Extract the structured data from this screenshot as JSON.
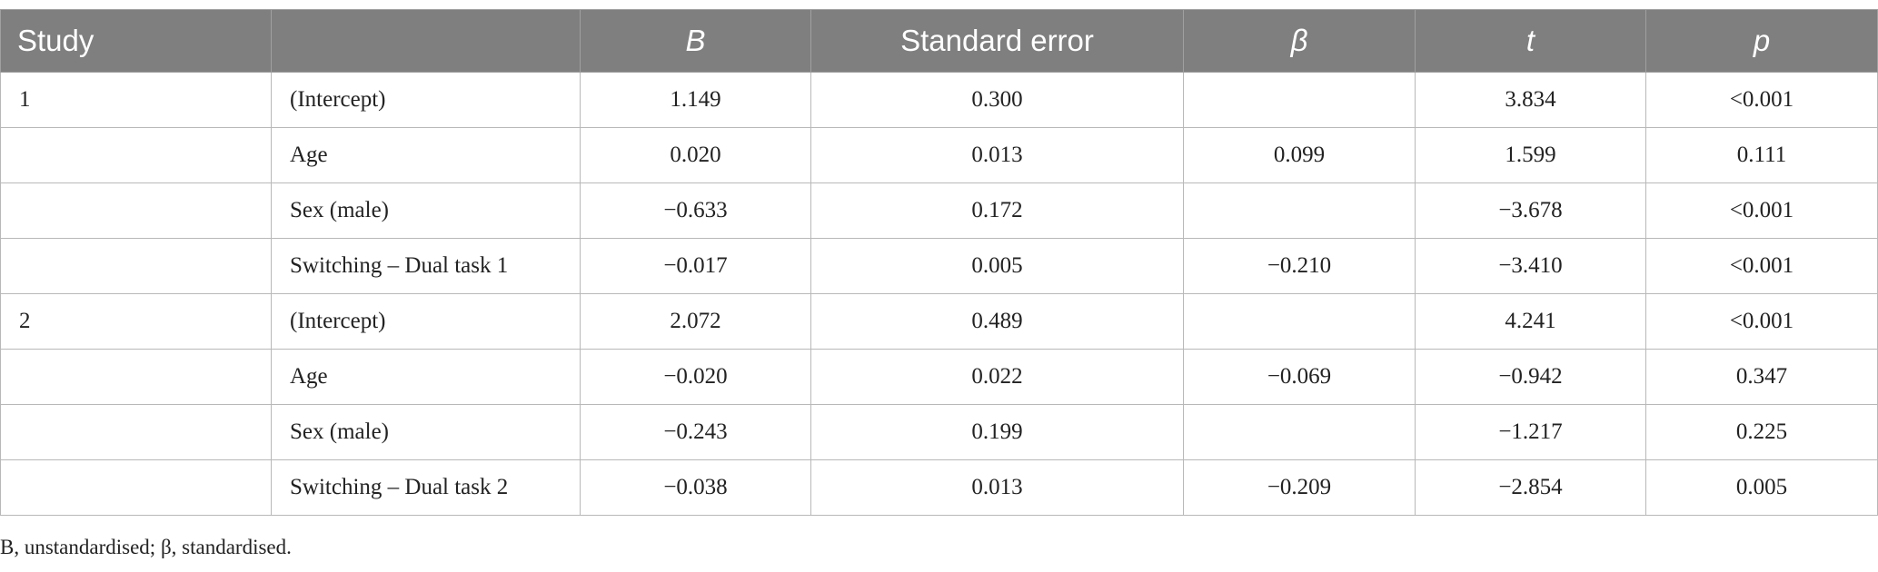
{
  "table": {
    "header": [
      "Study",
      null,
      "B",
      "Standard error",
      "β",
      "t",
      "p"
    ],
    "rows": [
      [
        "1",
        "(Intercept)",
        "1.149",
        "0.300",
        null,
        "3.834",
        "<0.001"
      ],
      [
        null,
        "Age",
        "0.020",
        "0.013",
        "0.099",
        "1.599",
        "0.111"
      ],
      [
        null,
        "Sex (male)",
        "−0.633",
        "0.172",
        null,
        "−3.678",
        "<0.001"
      ],
      [
        null,
        "Switching – Dual task 1",
        "−0.017",
        "0.005",
        "−0.210",
        "−3.410",
        "<0.001"
      ],
      [
        "2",
        "(Intercept)",
        "2.072",
        "0.489",
        null,
        "4.241",
        "<0.001"
      ],
      [
        null,
        "Age",
        "−0.020",
        "0.022",
        "−0.069",
        "−0.942",
        "0.347"
      ],
      [
        null,
        "Sex (male)",
        "−0.243",
        "0.199",
        null,
        "−1.217",
        "0.225"
      ],
      [
        null,
        "Switching – Dual task 2",
        "−0.038",
        "0.013",
        "−0.209",
        "−2.854",
        "0.005"
      ]
    ]
  },
  "footnote": "B, unstandardised; β, standardised."
}
